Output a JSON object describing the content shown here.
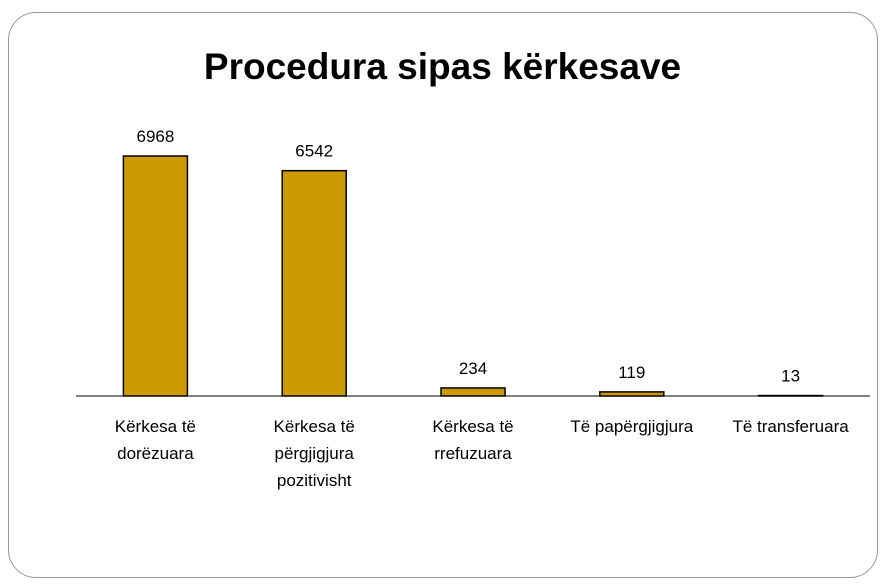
{
  "chart_data": {
    "type": "bar",
    "title": "Procedura sipas kërkesave",
    "categories": [
      "Kërkesa të dorëzuara",
      "Kërkesa të përgjigjura pozitivisht",
      "Kërkesa të rrefuzuara",
      "Të papërgjigjura",
      "Të transferuara"
    ],
    "values": [
      6968,
      6542,
      234,
      119,
      13
    ],
    "color": "#cc9900"
  }
}
